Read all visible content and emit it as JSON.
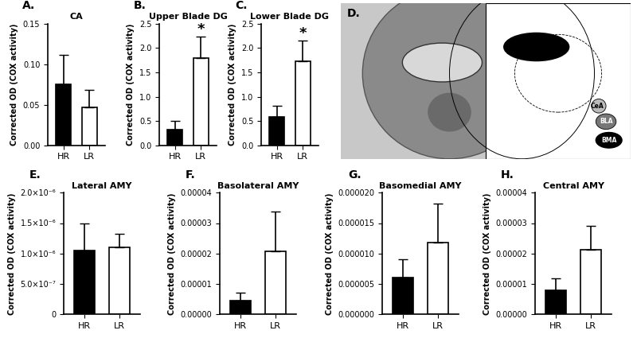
{
  "chart_data": [
    {
      "type": "bar",
      "title": "CA",
      "y_label": "Corrected OD (COX activity)",
      "annotations": [
        {
          "text": "A."
        }
      ],
      "categories": [
        "HR",
        "LR"
      ],
      "values": [
        0.075,
        0.047
      ],
      "errors": [
        0.037,
        0.021
      ],
      "colors": [
        "#000000",
        "#ffffff"
      ],
      "ylim": [
        0,
        0.15
      ],
      "yticks": [
        {
          "value": 0,
          "label": "0.00"
        },
        0.05,
        {
          "value": 0.1,
          "label": "0.10"
        },
        0.15
      ]
    },
    {
      "type": "bar",
      "title": "Upper Blade DG",
      "y_label": "Corrected OD (COX activity)",
      "annotations": [
        {
          "text": "B."
        },
        {
          "text": "*",
          "category": "LR"
        }
      ],
      "categories": [
        "HR",
        "LR"
      ],
      "values": [
        0.33,
        1.8
      ],
      "errors": [
        0.18,
        0.43
      ],
      "colors": [
        "#000000",
        "#ffffff"
      ],
      "ylim": [
        0,
        2.5
      ],
      "yticks": [
        0.0,
        0.5,
        1.0,
        1.5,
        2.0,
        2.5
      ]
    },
    {
      "type": "bar",
      "title": "Lower Blade DG",
      "y_label": "Corrected OD (COX activity)",
      "annotations": [
        {
          "text": "C."
        },
        {
          "text": "*",
          "category": "LR"
        }
      ],
      "categories": [
        "HR",
        "LR"
      ],
      "values": [
        0.58,
        1.73
      ],
      "errors": [
        0.23,
        0.42
      ],
      "colors": [
        "#000000",
        "#ffffff"
      ],
      "ylim": [
        0,
        2.5
      ],
      "yticks": [
        0.0,
        0.5,
        1.0,
        1.5,
        2.0,
        2.5
      ]
    },
    {
      "type": "bar",
      "title": "Lateral AMY",
      "y_label": "Corrected OD (COX activity)",
      "annotations": [
        {
          "text": "E."
        }
      ],
      "categories": [
        "HR",
        "LR"
      ],
      "values": [
        1.05e-06,
        1.1e-06
      ],
      "errors": [
        4.4e-07,
        2.3e-07
      ],
      "colors": [
        "#000000",
        "#ffffff"
      ],
      "ylim": [
        0,
        2e-06
      ],
      "yticks": [
        0,
        {
          "value": 5e-07,
          "label": "5.0×10⁻⁷"
        },
        {
          "value": 1e-06,
          "label": "1.0×10⁻⁶"
        },
        {
          "value": 1.5e-06,
          "label": "1.5×10⁻⁶"
        },
        {
          "value": 2e-06,
          "label": "2.0×10⁻⁶"
        }
      ]
    },
    {
      "type": "bar",
      "title": "Basolateral AMY",
      "y_label": "Corrected OD (COX activity)",
      "annotations": [
        {
          "text": "F."
        }
      ],
      "categories": [
        "HR",
        "LR"
      ],
      "values": [
        4.5e-06,
        2.07e-05
      ],
      "errors": [
        2.5e-06,
        1.3e-05
      ],
      "colors": [
        "#000000",
        "#ffffff"
      ],
      "ylim": [
        0,
        4e-05
      ],
      "yticks": [
        {
          "value": 0,
          "label": "0.00000"
        },
        {
          "value": 1e-05,
          "label": "0.00001"
        },
        {
          "value": 2e-05,
          "label": "0.00002"
        },
        {
          "value": 3e-05,
          "label": "0.00003"
        },
        {
          "value": 4e-05,
          "label": "0.00004"
        }
      ]
    },
    {
      "type": "bar",
      "title": "Basomedial AMY",
      "y_label": "Corrected OD (COX activity)",
      "annotations": [
        {
          "text": "G."
        }
      ],
      "categories": [
        "HR",
        "LR"
      ],
      "values": [
        6e-06,
        1.18e-05
      ],
      "errors": [
        3e-06,
        6.4e-06
      ],
      "colors": [
        "#000000",
        "#ffffff"
      ],
      "ylim": [
        0,
        2e-05
      ],
      "yticks": [
        {
          "value": 0,
          "label": "0.000000"
        },
        {
          "value": 5e-06,
          "label": "0.000005"
        },
        {
          "value": 1e-05,
          "label": "0.000010"
        },
        {
          "value": 1.5e-05,
          "label": "0.000015"
        },
        {
          "value": 2e-05,
          "label": "0.000020"
        }
      ]
    },
    {
      "type": "bar",
      "title": "Central AMY",
      "y_label": "Corrected OD (COX activity)",
      "annotations": [
        {
          "text": "H."
        }
      ],
      "categories": [
        "HR",
        "LR"
      ],
      "values": [
        8e-06,
        2.13e-05
      ],
      "errors": [
        3.8e-06,
        7.8e-06
      ],
      "colors": [
        "#000000",
        "#ffffff"
      ],
      "ylim": [
        0,
        4e-05
      ],
      "yticks": [
        {
          "value": 0,
          "label": "0.00000"
        },
        {
          "value": 1e-05,
          "label": "0.00001"
        },
        {
          "value": 2e-05,
          "label": "0.00002"
        },
        {
          "value": 3e-05,
          "label": "0.00003"
        },
        {
          "value": 4e-05,
          "label": "0.00004"
        }
      ]
    }
  ],
  "image_panel": {
    "label": "D.",
    "region_labels": [
      "CeA",
      "BLA",
      "BMA"
    ]
  }
}
